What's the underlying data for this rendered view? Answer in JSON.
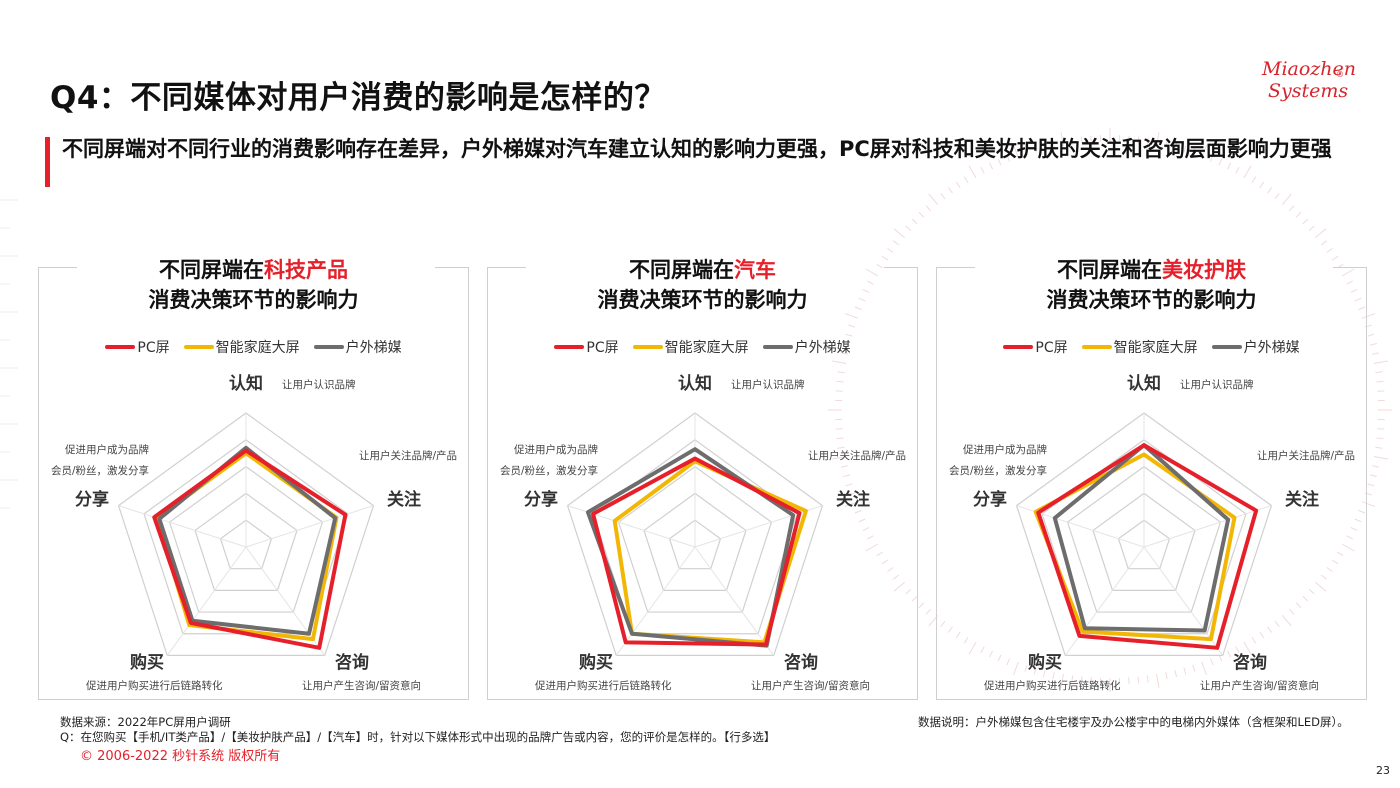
{
  "page": {
    "title": "Q4：不同媒体对用户消费的影响是怎样的？",
    "subtitle": "不同屏端对不同行业的消费影响存在差异，户外梯媒对汽车建立认知的影响力更强，PC屏对科技和美妆护肤的关注和咨询层面影响力更强",
    "logo_line1": "Miaozhen",
    "logo_line2": "Systems",
    "logo_reg": "®",
    "page_number": "23"
  },
  "colors": {
    "accent": "#e6202a",
    "pc": "#e6202a",
    "tv": "#f2b705",
    "outdoor": "#6d6d6d",
    "grid": "#d0d0d0"
  },
  "legend": [
    "PC屏",
    "智能家庭大屏",
    "户外梯媒"
  ],
  "axes": [
    {
      "name": "认知",
      "desc": "让用户认识品牌"
    },
    {
      "name": "关注",
      "desc": "让用户关注品牌/产品"
    },
    {
      "name": "咨询",
      "desc": "让用户产生咨询/留资意向"
    },
    {
      "name": "购买",
      "desc": "促进用户购买进行后链路转化"
    },
    {
      "name": "分享",
      "desc": "促进用户成为品牌会员/粉丝，激发分享",
      "desc_line1": "促进用户成为品牌",
      "desc_line2": "会员/粉丝，激发分享"
    }
  ],
  "panels": [
    {
      "title_prefix": "不同屏端在",
      "title_highlight": "科技产品",
      "title_line2": "消费决策环节的影响力"
    },
    {
      "title_prefix": "不同屏端在",
      "title_highlight": "汽车",
      "title_line2": "消费决策环节的影响力"
    },
    {
      "title_prefix": "不同屏端在",
      "title_highlight": "美妆护肤",
      "title_line2": "消费决策环节的影响力"
    }
  ],
  "chart_data": [
    {
      "type": "radar",
      "title": "不同屏端在科技产品消费决策环节的影响力",
      "categories": [
        "认知",
        "关注",
        "咨询",
        "购买",
        "分享"
      ],
      "series": [
        {
          "name": "PC屏",
          "values": [
            0.72,
            0.78,
            0.93,
            0.7,
            0.72
          ]
        },
        {
          "name": "智能家庭大屏",
          "values": [
            0.7,
            0.71,
            0.85,
            0.72,
            0.7
          ]
        },
        {
          "name": "户外梯媒",
          "values": [
            0.74,
            0.7,
            0.8,
            0.68,
            0.68
          ]
        }
      ],
      "scale": "relative, unlabeled",
      "grid": true,
      "legend_position": "top"
    },
    {
      "type": "radar",
      "title": "不同屏端在汽车消费决策环节的影响力",
      "categories": [
        "认知",
        "关注",
        "咨询",
        "购买",
        "分享"
      ],
      "series": [
        {
          "name": "PC屏",
          "values": [
            0.66,
            0.82,
            0.9,
            0.88,
            0.8
          ]
        },
        {
          "name": "智能家庭大屏",
          "values": [
            0.64,
            0.87,
            0.88,
            0.8,
            0.63
          ]
        },
        {
          "name": "户外梯媒",
          "values": [
            0.73,
            0.77,
            0.91,
            0.8,
            0.84
          ]
        }
      ],
      "scale": "relative, unlabeled",
      "grid": true,
      "legend_position": "top"
    },
    {
      "type": "radar",
      "title": "不同屏端在美妆护肤消费决策环节的影响力",
      "categories": [
        "认知",
        "关注",
        "咨询",
        "购买",
        "分享"
      ],
      "series": [
        {
          "name": "PC屏",
          "values": [
            0.76,
            0.88,
            0.93,
            0.82,
            0.83
          ]
        },
        {
          "name": "智能家庭大屏",
          "values": [
            0.69,
            0.71,
            0.85,
            0.78,
            0.85
          ]
        },
        {
          "name": "户外梯媒",
          "values": [
            0.76,
            0.66,
            0.77,
            0.75,
            0.7
          ]
        }
      ],
      "scale": "relative, unlabeled",
      "grid": true,
      "legend_position": "top"
    }
  ],
  "footnotes": {
    "source": "数据来源：2022年PC屏用户调研",
    "question": "Q：在您购买【手机/IT类产品】/【美妆护肤产品】/【汽车】时，针对以下媒体形式中出现的品牌广告或内容，您的评价是怎样的。【行多选】",
    "note": "数据说明：户外梯媒包含住宅楼宇及办公楼宇中的电梯内外媒体（含框架和LED屏）。",
    "copyright": "© 2006-2022 秒针系统 版权所有"
  }
}
